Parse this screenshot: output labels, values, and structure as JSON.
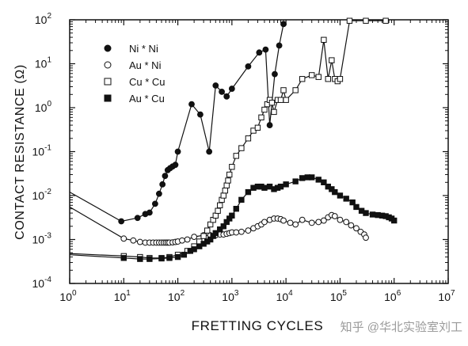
{
  "chart_data": {
    "type": "scatter",
    "title": "",
    "xlabel": "FRETTING CYCLES",
    "ylabel": "CONTACT RESISTANCE (Ω)",
    "x_scale": "log",
    "y_scale": "log",
    "xlim": [
      1,
      10000000
    ],
    "ylim": [
      0.0001,
      100
    ],
    "x_ticks": [
      {
        "value": 1,
        "base": "10",
        "exp": "0"
      },
      {
        "value": 10,
        "base": "10",
        "exp": "1"
      },
      {
        "value": 100,
        "base": "10",
        "exp": "2"
      },
      {
        "value": 1000,
        "base": "10",
        "exp": "3"
      },
      {
        "value": 10000,
        "base": "10",
        "exp": "4"
      },
      {
        "value": 100000,
        "base": "10",
        "exp": "5"
      },
      {
        "value": 1000000,
        "base": "10",
        "exp": "6"
      },
      {
        "value": 10000000,
        "base": "10",
        "exp": "7"
      }
    ],
    "y_ticks": [
      {
        "value": 0.0001,
        "base": "10",
        "exp": "-4"
      },
      {
        "value": 0.001,
        "base": "10",
        "exp": "-3"
      },
      {
        "value": 0.01,
        "base": "10",
        "exp": "-2"
      },
      {
        "value": 0.1,
        "base": "10",
        "exp": "-1"
      },
      {
        "value": 1,
        "base": "10",
        "exp": "0"
      },
      {
        "value": 10,
        "base": "10",
        "exp": "1"
      },
      {
        "value": 100,
        "base": "10",
        "exp": "2"
      }
    ],
    "grid": false,
    "legend_position": "top-left",
    "series": [
      {
        "name": "Ni * Ni",
        "marker": "filled-circle",
        "color": "#111111",
        "points": [
          [
            1,
            0.012
          ],
          [
            9,
            0.0026
          ],
          [
            18,
            0.0031
          ],
          [
            25,
            0.0038
          ],
          [
            30,
            0.0041
          ],
          [
            38,
            0.0065
          ],
          [
            45,
            0.011
          ],
          [
            52,
            0.018
          ],
          [
            58,
            0.028
          ],
          [
            65,
            0.038
          ],
          [
            72,
            0.042
          ],
          [
            80,
            0.046
          ],
          [
            90,
            0.05
          ],
          [
            100,
            0.1
          ],
          [
            180,
            1.2
          ],
          [
            260,
            0.7
          ],
          [
            380,
            0.1
          ],
          [
            500,
            3.2
          ],
          [
            650,
            2.3
          ],
          [
            800,
            1.8
          ],
          [
            1000,
            2.7
          ],
          [
            2000,
            8.7
          ],
          [
            3200,
            18
          ],
          [
            4200,
            21
          ],
          [
            5000,
            0.4
          ],
          [
            6200,
            5.8
          ],
          [
            7500,
            26
          ],
          [
            9000,
            80
          ]
        ]
      },
      {
        "name": "Au * Ni",
        "marker": "open-circle",
        "color": "#111111",
        "points": [
          [
            1,
            0.0055
          ],
          [
            10,
            0.00105
          ],
          [
            15,
            0.00095
          ],
          [
            20,
            0.00088
          ],
          [
            25,
            0.00085
          ],
          [
            30,
            0.00085
          ],
          [
            35,
            0.00085
          ],
          [
            40,
            0.00085
          ],
          [
            45,
            0.00085
          ],
          [
            50,
            0.00085
          ],
          [
            55,
            0.00085
          ],
          [
            60,
            0.00085
          ],
          [
            65,
            0.00085
          ],
          [
            70,
            0.00085
          ],
          [
            80,
            0.00086
          ],
          [
            90,
            0.00088
          ],
          [
            100,
            0.0009
          ],
          [
            120,
            0.00095
          ],
          [
            150,
            0.001
          ],
          [
            200,
            0.00115
          ],
          [
            300,
            0.00125
          ],
          [
            400,
            0.00125
          ],
          [
            500,
            0.00125
          ],
          [
            600,
            0.0013
          ],
          [
            700,
            0.0013
          ],
          [
            800,
            0.00135
          ],
          [
            900,
            0.0014
          ],
          [
            1000,
            0.00145
          ],
          [
            1200,
            0.00145
          ],
          [
            1500,
            0.0015
          ],
          [
            2000,
            0.0016
          ],
          [
            2500,
            0.0018
          ],
          [
            3000,
            0.002
          ],
          [
            3500,
            0.0022
          ],
          [
            4000,
            0.0025
          ],
          [
            5000,
            0.0028
          ],
          [
            6000,
            0.003
          ],
          [
            7000,
            0.003
          ],
          [
            8000,
            0.0029
          ],
          [
            9000,
            0.0027
          ],
          [
            12000,
            0.0024
          ],
          [
            15000,
            0.0022
          ],
          [
            20000,
            0.0028
          ],
          [
            30000,
            0.0024
          ],
          [
            40000,
            0.0025
          ],
          [
            50000,
            0.0027
          ],
          [
            60000,
            0.0032
          ],
          [
            70000,
            0.0036
          ],
          [
            80000,
            0.0034
          ],
          [
            100000,
            0.0028
          ],
          [
            130000,
            0.0025
          ],
          [
            160000,
            0.0021
          ],
          [
            200000,
            0.0018
          ],
          [
            240000,
            0.0015
          ],
          [
            280000,
            0.0013
          ],
          [
            300000,
            0.0011
          ]
        ]
      },
      {
        "name": "Cu * Cu",
        "marker": "open-square",
        "color": "#111111",
        "points": [
          [
            1,
            0.00048
          ],
          [
            10,
            0.00042
          ],
          [
            20,
            0.0004
          ],
          [
            30,
            0.00038
          ],
          [
            50,
            0.00038
          ],
          [
            70,
            0.0004
          ],
          [
            100,
            0.00045
          ],
          [
            150,
            0.00055
          ],
          [
            200,
            0.0007
          ],
          [
            250,
            0.0009
          ],
          [
            300,
            0.0012
          ],
          [
            350,
            0.0016
          ],
          [
            400,
            0.0022
          ],
          [
            450,
            0.0028
          ],
          [
            500,
            0.0035
          ],
          [
            550,
            0.0045
          ],
          [
            600,
            0.006
          ],
          [
            650,
            0.008
          ],
          [
            700,
            0.01
          ],
          [
            750,
            0.013
          ],
          [
            800,
            0.017
          ],
          [
            850,
            0.022
          ],
          [
            900,
            0.03
          ],
          [
            1000,
            0.045
          ],
          [
            1200,
            0.08
          ],
          [
            1500,
            0.12
          ],
          [
            2000,
            0.2
          ],
          [
            2500,
            0.3
          ],
          [
            3000,
            0.35
          ],
          [
            3500,
            0.6
          ],
          [
            4000,
            0.9
          ],
          [
            4500,
            1.2
          ],
          [
            5000,
            1.5
          ],
          [
            5500,
            1.3
          ],
          [
            6000,
            0.8
          ],
          [
            7000,
            1.5
          ],
          [
            8000,
            1.5
          ],
          [
            9000,
            2.5
          ],
          [
            10000,
            1.5
          ],
          [
            15000,
            2.5
          ],
          [
            20000,
            4.5
          ],
          [
            30000,
            5.5
          ],
          [
            40000,
            5.0
          ],
          [
            50000,
            35
          ],
          [
            60000,
            4.5
          ],
          [
            70000,
            12
          ],
          [
            80000,
            4.5
          ],
          [
            90000,
            4.0
          ],
          [
            100000,
            4.5
          ],
          [
            150000,
            95
          ],
          [
            300000,
            95
          ],
          [
            700000,
            95
          ]
        ]
      },
      {
        "name": "Au * Cu",
        "marker": "filled-square",
        "color": "#111111",
        "points": [
          [
            1,
            0.00045
          ],
          [
            10,
            0.00038
          ],
          [
            20,
            0.00036
          ],
          [
            30,
            0.00036
          ],
          [
            50,
            0.00037
          ],
          [
            70,
            0.00038
          ],
          [
            100,
            0.0004
          ],
          [
            130,
            0.00045
          ],
          [
            170,
            0.00055
          ],
          [
            200,
            0.0006
          ],
          [
            250,
            0.0007
          ],
          [
            300,
            0.0008
          ],
          [
            350,
            0.0009
          ],
          [
            400,
            0.001
          ],
          [
            450,
            0.0012
          ],
          [
            500,
            0.0014
          ],
          [
            600,
            0.0017
          ],
          [
            700,
            0.002
          ],
          [
            800,
            0.0025
          ],
          [
            900,
            0.003
          ],
          [
            1000,
            0.0035
          ],
          [
            1200,
            0.005
          ],
          [
            1500,
            0.008
          ],
          [
            2000,
            0.012
          ],
          [
            2500,
            0.015
          ],
          [
            3000,
            0.016
          ],
          [
            3500,
            0.016
          ],
          [
            4000,
            0.015
          ],
          [
            5000,
            0.016
          ],
          [
            6000,
            0.014
          ],
          [
            7000,
            0.015
          ],
          [
            8000,
            0.016
          ],
          [
            10000,
            0.018
          ],
          [
            15000,
            0.021
          ],
          [
            20000,
            0.025
          ],
          [
            25000,
            0.026
          ],
          [
            30000,
            0.026
          ],
          [
            40000,
            0.023
          ],
          [
            50000,
            0.02
          ],
          [
            60000,
            0.016
          ],
          [
            70000,
            0.014
          ],
          [
            80000,
            0.012
          ],
          [
            100000,
            0.01
          ],
          [
            130000,
            0.0085
          ],
          [
            170000,
            0.007
          ],
          [
            200000,
            0.0055
          ],
          [
            250000,
            0.0045
          ],
          [
            300000,
            0.004
          ],
          [
            400000,
            0.0037
          ],
          [
            500000,
            0.0036
          ],
          [
            600000,
            0.0035
          ],
          [
            700000,
            0.0034
          ],
          [
            800000,
            0.0032
          ],
          [
            900000,
            0.003
          ],
          [
            1000000,
            0.0027
          ]
        ]
      }
    ]
  },
  "watermark": "知乎 @华北实验室刘工"
}
